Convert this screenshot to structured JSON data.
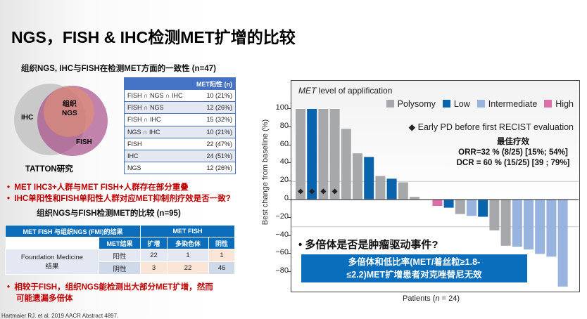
{
  "title": "NGS，FISH & IHC检测MET扩增的比较",
  "venn": {
    "subtitle": "组织NGS, IHC与FISH在检测MET方面的一致性 (n=47)",
    "labels": {
      "ihc": "IHC",
      "ngs1": "组织",
      "ngs2": "NGS",
      "fish": "FISH"
    },
    "study": "TATTON研究"
  },
  "table1": {
    "header": "MET阳性 (n)",
    "rows": [
      [
        "FISH ∩ NGS ∩ IHC",
        "10 (21%)"
      ],
      [
        "FISH ∩ NGS",
        "12 (26%)"
      ],
      [
        "FISH ∩ IHC",
        "15 (32%)"
      ],
      [
        "NGS ∩ IHC",
        "10 (21%)"
      ],
      [
        "FISH",
        "22 (47%)"
      ],
      [
        "IHC",
        "24 (51%)"
      ],
      [
        "NGS",
        "12 (26%)"
      ]
    ]
  },
  "bullets1": [
    "MET IHC3+人群与MET FISH+人群存在部分重叠",
    "IHC单阳性和FISH单阳性人群对应MET抑制剂疗效是否一致?"
  ],
  "table2": {
    "subtitle": "组织NGS与FISH检测MET的比较 (n=95)",
    "h1": "MET FISH 与组织NGS (FMI)的结果",
    "h2": "MET FISH",
    "h_result": "MET结果",
    "cols": [
      "扩增",
      "多染色体",
      "阴性"
    ],
    "row_label1": "Foundation Medicine",
    "row_label2": "结果",
    "rows": [
      {
        "label": "阳性",
        "values": [
          "22",
          "1",
          "1"
        ]
      },
      {
        "label": "阴性",
        "values": [
          "3",
          "22",
          "46"
        ]
      }
    ]
  },
  "bullet2": [
    "相较于FISH，组织NGS能检测出大部分MET扩增，然而",
    "可能遗漏多倍体"
  ],
  "citation": "Hartmaier RJ. et al. 2019 AACR Abstract 4897.",
  "chart_data": {
    "type": "bar",
    "title_italic": "MET",
    "title_rest": " level of applification",
    "ylabel": "Best change from baseline (%)",
    "xlabel_pre": "Patients (",
    "xlabel_n": "n",
    "xlabel_post": " = 24)",
    "ylim": [
      -100,
      110
    ],
    "yticks": [
      100,
      80,
      60,
      40,
      20,
      0,
      -20,
      -40,
      -60,
      -80
    ],
    "reference_lines": [
      20,
      -30
    ],
    "legend": [
      {
        "name": "Polysomy",
        "color": "#a6a8ab"
      },
      {
        "name": "Low",
        "color": "#0a64ad"
      },
      {
        "name": "Intermediate",
        "color": "#97b3de"
      },
      {
        "name": "High",
        "color": "#dd6fa8"
      }
    ],
    "early_pd_label": "Early PD before first RECIST evaluation",
    "values": [
      100,
      100,
      100,
      100,
      78,
      51,
      47,
      26,
      23,
      19,
      3,
      0,
      -7,
      -9,
      -16,
      -18,
      -19,
      -34,
      -51,
      -52,
      -55,
      -60,
      -63,
      -96
    ],
    "categories": [
      "Polysomy",
      "Low",
      "Polysomy",
      "Polysomy",
      "Polysomy",
      "Polysomy",
      "Low",
      "Polysomy",
      "Low",
      "Polysomy",
      "Polysomy",
      "Polysomy",
      "High",
      "Low",
      "Polysomy",
      "Intermediate",
      "Low",
      "Polysomy",
      "Polysomy",
      "Intermediate",
      "Intermediate",
      "Intermediate",
      "Intermediate",
      "Intermediate"
    ],
    "early_pd": [
      true,
      true,
      true,
      true,
      false,
      false,
      false,
      false,
      false,
      false,
      false,
      false,
      false,
      false,
      false,
      false,
      false,
      false,
      false,
      false,
      false,
      false,
      false,
      false
    ],
    "best_response": {
      "title": "最佳疗效",
      "orr": "ORR=32 % (8/25) [15%;  54%]",
      "dcr": "DCR = 60 % (15/25) [39 ; 79%]"
    },
    "question": "多倍体是否是肿瘤驱动事件?",
    "conclusion": [
      "多倍体和低比率(MET/着丝粒≥1.8-",
      "≤2.2)MET扩增患者对克唑替尼无效"
    ]
  }
}
